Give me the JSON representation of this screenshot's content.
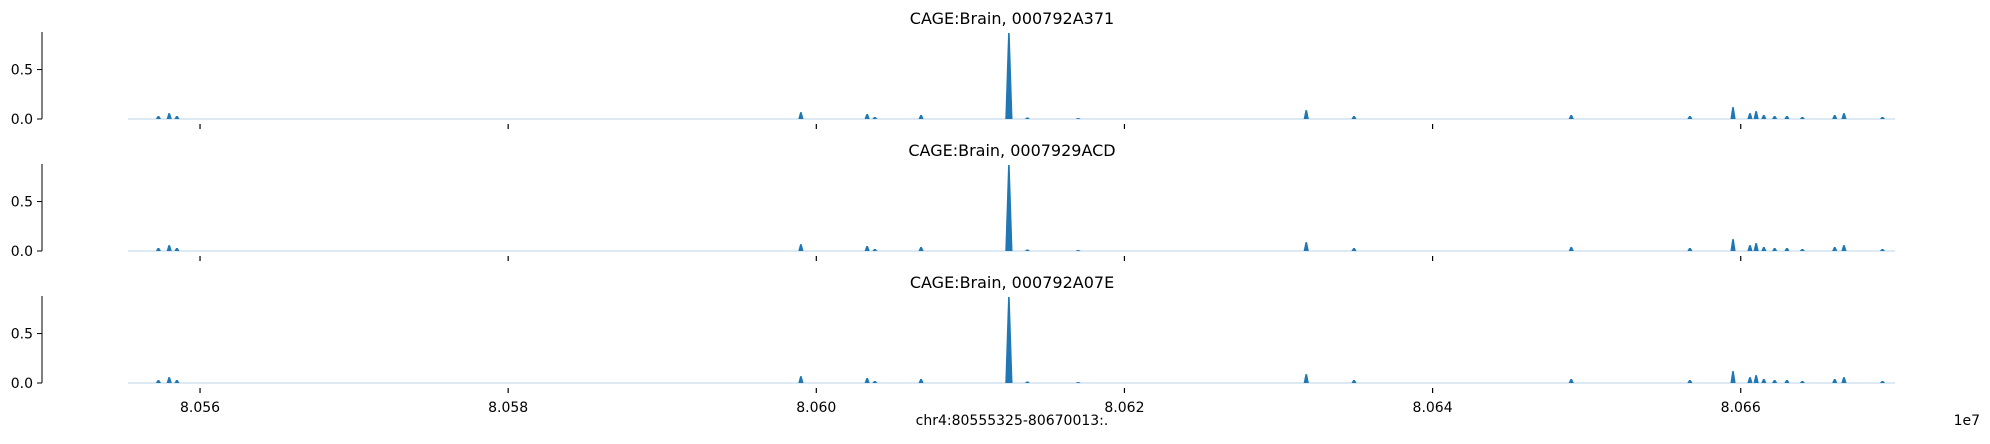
{
  "figure": {
    "xlabel": "chr4:80555325-80670013:.",
    "x_offset_label": "1e7"
  },
  "chart_data": [
    {
      "type": "area",
      "title": "CAGE:Brain, 000792A371",
      "xlim": [
        80555325,
        80670013
      ],
      "ylim": [
        0,
        0.9
      ],
      "yticks": [
        0.0,
        0.5
      ],
      "ytick_labels": [
        "0.0",
        "0.5"
      ],
      "xticks": [
        80560000,
        80580000,
        80600000,
        80620000,
        80640000,
        80660000
      ],
      "xtick_labels": [],
      "color": "#1f77b4",
      "grid": false,
      "peaks": [
        {
          "x": 80557300,
          "y": 0.03
        },
        {
          "x": 80558000,
          "y": 0.06
        },
        {
          "x": 80558500,
          "y": 0.03
        },
        {
          "x": 80599000,
          "y": 0.07
        },
        {
          "x": 80603300,
          "y": 0.05
        },
        {
          "x": 80603800,
          "y": 0.02
        },
        {
          "x": 80606800,
          "y": 0.04
        },
        {
          "x": 80612500,
          "y": 0.87
        },
        {
          "x": 80613700,
          "y": 0.015
        },
        {
          "x": 80617000,
          "y": 0.01
        },
        {
          "x": 80631800,
          "y": 0.09
        },
        {
          "x": 80634900,
          "y": 0.03
        },
        {
          "x": 80649000,
          "y": 0.04
        },
        {
          "x": 80656700,
          "y": 0.03
        },
        {
          "x": 80659500,
          "y": 0.12
        },
        {
          "x": 80660600,
          "y": 0.06
        },
        {
          "x": 80661000,
          "y": 0.08
        },
        {
          "x": 80661500,
          "y": 0.04
        },
        {
          "x": 80662200,
          "y": 0.03
        },
        {
          "x": 80663000,
          "y": 0.03
        },
        {
          "x": 80664000,
          "y": 0.02
        },
        {
          "x": 80666100,
          "y": 0.04
        },
        {
          "x": 80666700,
          "y": 0.06
        },
        {
          "x": 80669200,
          "y": 0.02
        }
      ]
    },
    {
      "type": "area",
      "title": "CAGE:Brain, 0007929ACD",
      "xlim": [
        80555325,
        80670013
      ],
      "ylim": [
        0,
        0.9
      ],
      "yticks": [
        0.0,
        0.5
      ],
      "ytick_labels": [
        "0.0",
        "0.5"
      ],
      "xticks": [
        80560000,
        80580000,
        80600000,
        80620000,
        80640000,
        80660000
      ],
      "xtick_labels": [],
      "color": "#1f77b4",
      "grid": false,
      "peaks": [
        {
          "x": 80557300,
          "y": 0.03
        },
        {
          "x": 80558000,
          "y": 0.06
        },
        {
          "x": 80558500,
          "y": 0.03
        },
        {
          "x": 80599000,
          "y": 0.07
        },
        {
          "x": 80603300,
          "y": 0.05
        },
        {
          "x": 80603800,
          "y": 0.02
        },
        {
          "x": 80606800,
          "y": 0.04
        },
        {
          "x": 80612500,
          "y": 0.87
        },
        {
          "x": 80613700,
          "y": 0.015
        },
        {
          "x": 80617000,
          "y": 0.01
        },
        {
          "x": 80631800,
          "y": 0.09
        },
        {
          "x": 80634900,
          "y": 0.03
        },
        {
          "x": 80649000,
          "y": 0.04
        },
        {
          "x": 80656700,
          "y": 0.03
        },
        {
          "x": 80659500,
          "y": 0.12
        },
        {
          "x": 80660600,
          "y": 0.06
        },
        {
          "x": 80661000,
          "y": 0.08
        },
        {
          "x": 80661500,
          "y": 0.04
        },
        {
          "x": 80662200,
          "y": 0.03
        },
        {
          "x": 80663000,
          "y": 0.03
        },
        {
          "x": 80664000,
          "y": 0.02
        },
        {
          "x": 80666100,
          "y": 0.04
        },
        {
          "x": 80666700,
          "y": 0.06
        },
        {
          "x": 80669200,
          "y": 0.02
        }
      ]
    },
    {
      "type": "area",
      "title": "CAGE:Brain, 000792A07E",
      "xlim": [
        80555325,
        80670013
      ],
      "ylim": [
        0,
        0.9
      ],
      "yticks": [
        0.0,
        0.5
      ],
      "ytick_labels": [
        "0.0",
        "0.5"
      ],
      "xticks": [
        80560000,
        80580000,
        80600000,
        80620000,
        80640000,
        80660000
      ],
      "xtick_labels": [
        "8.056",
        "8.058",
        "8.060",
        "8.062",
        "8.064",
        "8.066"
      ],
      "color": "#1f77b4",
      "grid": false,
      "peaks": [
        {
          "x": 80557300,
          "y": 0.03
        },
        {
          "x": 80558000,
          "y": 0.06
        },
        {
          "x": 80558500,
          "y": 0.03
        },
        {
          "x": 80599000,
          "y": 0.07
        },
        {
          "x": 80603300,
          "y": 0.05
        },
        {
          "x": 80603800,
          "y": 0.02
        },
        {
          "x": 80606800,
          "y": 0.04
        },
        {
          "x": 80612500,
          "y": 0.87
        },
        {
          "x": 80613700,
          "y": 0.015
        },
        {
          "x": 80617000,
          "y": 0.01
        },
        {
          "x": 80631800,
          "y": 0.09
        },
        {
          "x": 80634900,
          "y": 0.03
        },
        {
          "x": 80649000,
          "y": 0.04
        },
        {
          "x": 80656700,
          "y": 0.03
        },
        {
          "x": 80659500,
          "y": 0.12
        },
        {
          "x": 80660600,
          "y": 0.06
        },
        {
          "x": 80661000,
          "y": 0.08
        },
        {
          "x": 80661500,
          "y": 0.04
        },
        {
          "x": 80662200,
          "y": 0.03
        },
        {
          "x": 80663000,
          "y": 0.03
        },
        {
          "x": 80664000,
          "y": 0.02
        },
        {
          "x": 80666100,
          "y": 0.04
        },
        {
          "x": 80666700,
          "y": 0.06
        },
        {
          "x": 80669200,
          "y": 0.02
        }
      ]
    }
  ]
}
